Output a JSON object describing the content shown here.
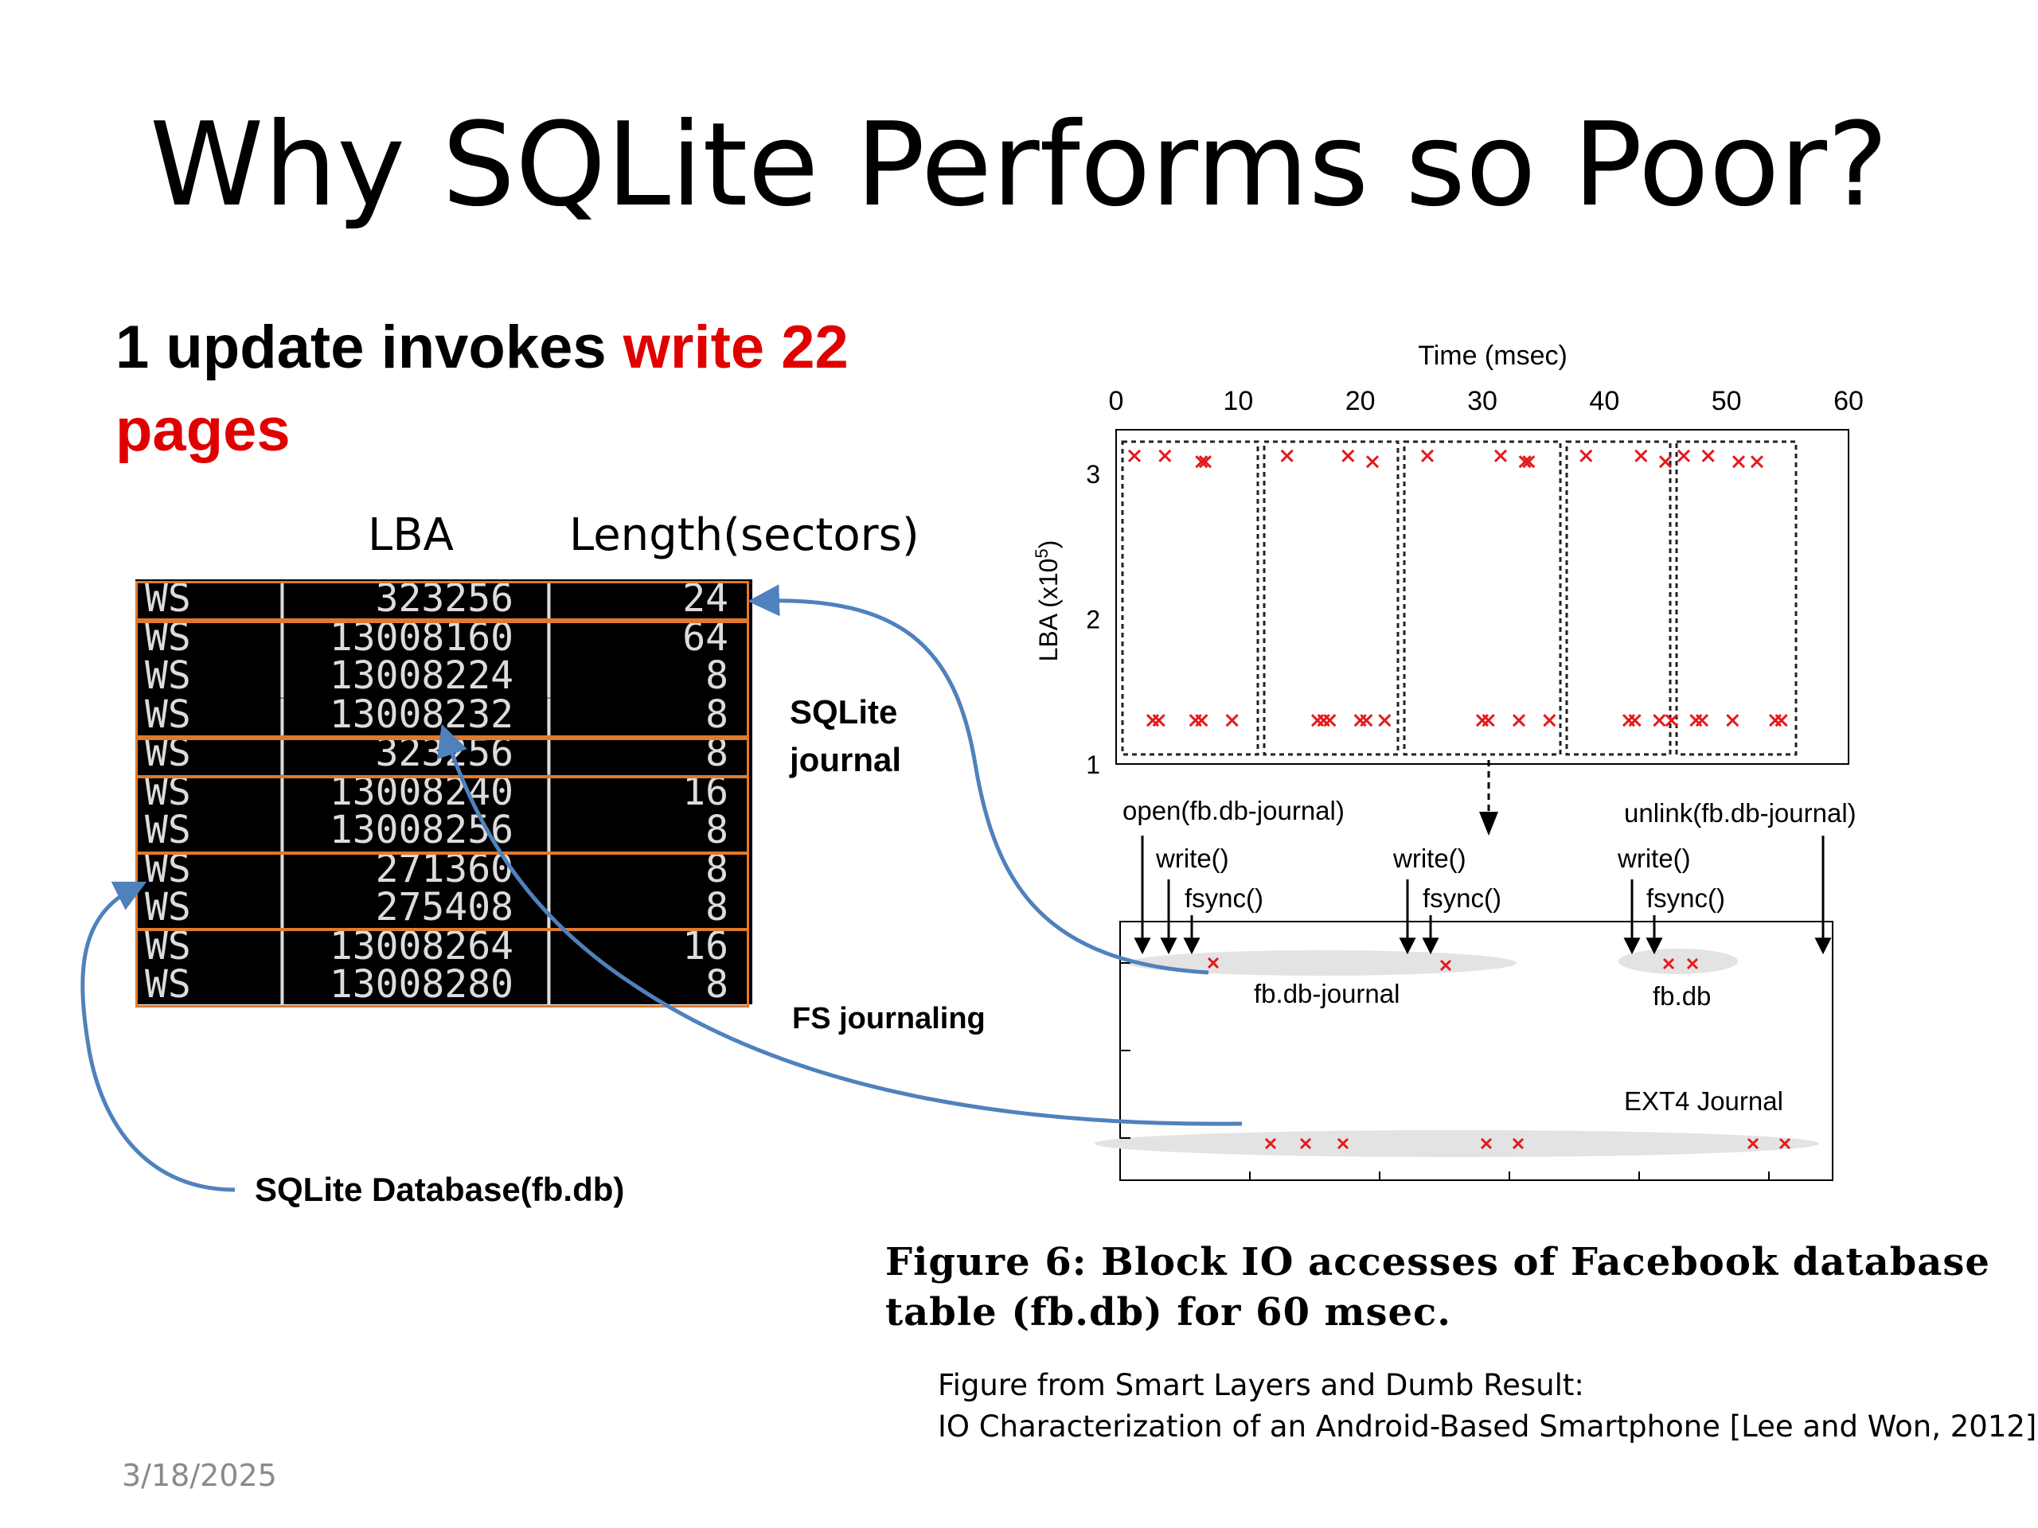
{
  "slide": {
    "title": "Why SQLite Performs so Poor?",
    "headline_part1": "1 update invokes ",
    "headline_part2": "write 22",
    "headline_part3": "pages",
    "date": "3/18/2025"
  },
  "table": {
    "header_lba": "LBA",
    "header_length": "Length(sectors)",
    "rows": [
      {
        "op": "WS",
        "sep": "|",
        "lba": "323256",
        "len": "24"
      },
      {
        "op": "WS",
        "sep": "|",
        "lba": "13008160",
        "len": "64"
      },
      {
        "op": "WS",
        "sep": "|",
        "lba": "13008224",
        "len": "8"
      },
      {
        "op": "WS",
        "sep": "|",
        "lba": "13008232",
        "len": "8"
      },
      {
        "op": "WS",
        "sep": "|",
        "lba": "323256",
        "len": "8"
      },
      {
        "op": "WS",
        "sep": "|",
        "lba": "13008240",
        "len": "16"
      },
      {
        "op": "WS",
        "sep": "|",
        "lba": "13008256",
        "len": "8"
      },
      {
        "op": "WS",
        "sep": "|",
        "lba": "271360",
        "len": "8"
      },
      {
        "op": "WS",
        "sep": "|",
        "lba": "275408",
        "len": "8"
      },
      {
        "op": "WS",
        "sep": "|",
        "lba": "13008264",
        "len": "16"
      },
      {
        "op": "WS",
        "sep": "|",
        "lba": "13008280",
        "len": "8"
      }
    ]
  },
  "annotations": {
    "sqlite_journal_line1": "SQLite",
    "sqlite_journal_line2": "journal",
    "fs_journaling": "FS journaling",
    "sqlite_database": "SQLite Database(fb.db)"
  },
  "figure": {
    "caption_line1": "Figure 6:  Block IO  accesses  of  Facebook  database",
    "caption_line2": "table (fb.db) for 60 msec.",
    "source_line1": "Figure from Smart Layers and Dumb Result:",
    "source_line2": "IO Characterization of an Android-Based Smartphone [Lee and Won, 2012]",
    "labels": {
      "open": "open(fb.db-journal)",
      "unlink": "unlink(fb.db-journal)",
      "write": "write()",
      "fsync": "fsync()",
      "fb_db_journal": "fb.db-journal",
      "fb_db": "fb.db",
      "ext4_journal": "EXT4 Journal"
    }
  },
  "chart_data": {
    "type": "scatter",
    "xlabel": "Time (msec)",
    "ylabel": "LBA (x10^5)",
    "xlim": [
      0,
      60
    ],
    "ylim": [
      1,
      3.3
    ],
    "xticks": [
      "0",
      "10",
      "20",
      "30",
      "40",
      "50",
      "60"
    ],
    "yticks": [
      "1",
      "2",
      "3"
    ],
    "colors": {
      "marker": "#e41a1c",
      "arrow": "#4f81bd"
    },
    "series": [
      {
        "points": [
          [
            1.5,
            3.12
          ],
          [
            4,
            3.12
          ],
          [
            7,
            3.08
          ],
          [
            7.3,
            3.08
          ],
          [
            14,
            3.12
          ],
          [
            19,
            3.12
          ],
          [
            21,
            3.08
          ],
          [
            25.5,
            3.12
          ],
          [
            31.5,
            3.12
          ],
          [
            33.5,
            3.08
          ],
          [
            33.8,
            3.08
          ],
          [
            38.5,
            3.12
          ],
          [
            43,
            3.12
          ],
          [
            45,
            3.08
          ],
          [
            46.5,
            3.12
          ],
          [
            48.5,
            3.12
          ],
          [
            51,
            3.08
          ],
          [
            52.5,
            3.08
          ],
          [
            3,
            1.3
          ],
          [
            3.5,
            1.3
          ],
          [
            6.5,
            1.3
          ],
          [
            7,
            1.3
          ],
          [
            9.5,
            1.3
          ],
          [
            16.5,
            1.3
          ],
          [
            17,
            1.3
          ],
          [
            17.5,
            1.3
          ],
          [
            20,
            1.3
          ],
          [
            20.5,
            1.3
          ],
          [
            22,
            1.3
          ],
          [
            30,
            1.3
          ],
          [
            30.5,
            1.3
          ],
          [
            33,
            1.3
          ],
          [
            35.5,
            1.3
          ],
          [
            42,
            1.3
          ],
          [
            42.5,
            1.3
          ],
          [
            44.5,
            1.3
          ],
          [
            45.5,
            1.3
          ],
          [
            47.5,
            1.3
          ],
          [
            48,
            1.3
          ],
          [
            50.5,
            1.3
          ],
          [
            54,
            1.3
          ],
          [
            54.5,
            1.3
          ]
        ]
      }
    ]
  }
}
